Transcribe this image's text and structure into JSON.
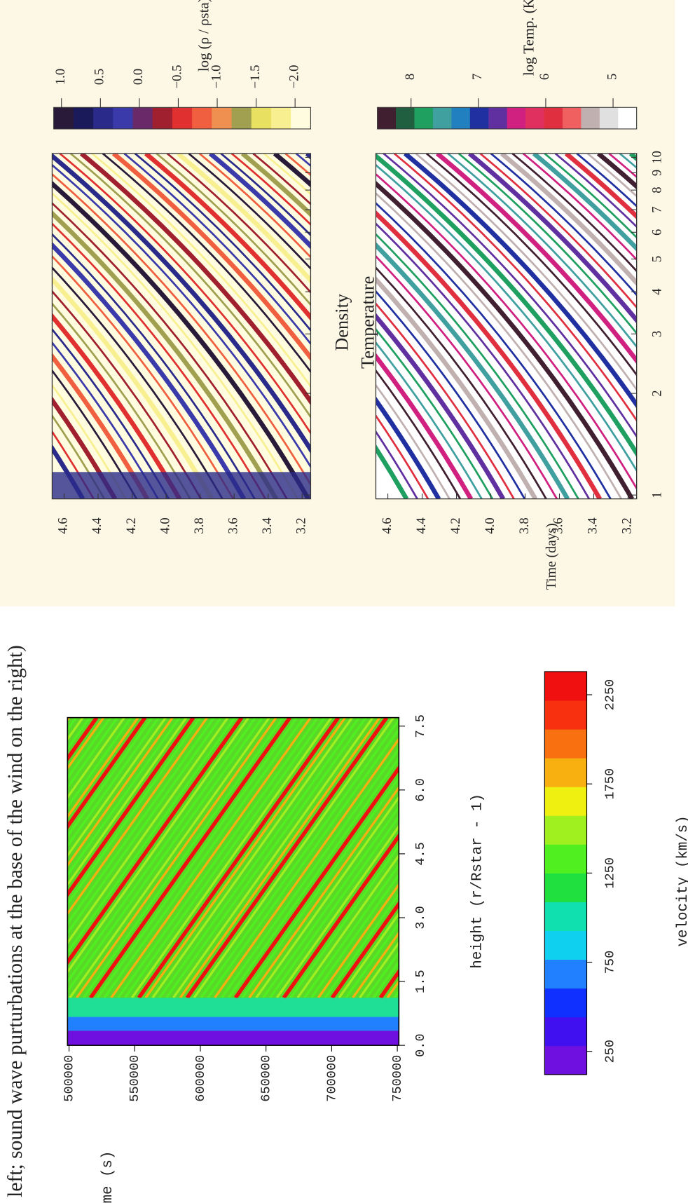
{
  "caption": "left; sound wave purturbations at the base of the wind on the right)",
  "chart_data": [
    {
      "type": "heatmap",
      "xlabel": "height (r/Rstar - 1)",
      "ylabel": "time (s)",
      "xlim": [
        0,
        7.7
      ],
      "xticks": [
        {
          "value": 0,
          "label": "0.0"
        },
        1.5,
        {
          "value": 3,
          "label": "3.0"
        },
        4.5,
        {
          "value": 6,
          "label": "6.0"
        },
        7.5
      ],
      "ylim": [
        500000,
        750000
      ],
      "yticks": [
        500000,
        550000,
        600000,
        650000,
        700000,
        750000
      ],
      "colorbar": {
        "label": "velocity (km/s)",
        "lim": [
          120,
          2380
        ],
        "ticks": [
          250,
          750,
          1250,
          1750,
          2250
        ],
        "colors": [
          "#7010e0",
          "#4010f0",
          "#1030ff",
          "#2080ff",
          "#10d0f0",
          "#10e0b0",
          "#20e040",
          "#50f020",
          "#a0f020",
          "#f0f010",
          "#f8b010",
          "#f87010",
          "#f83010",
          "#f01010"
        ]
      }
    },
    {
      "type": "heatmap",
      "title": "Density",
      "ylim": [
        4.67,
        3.15
      ],
      "yticks": [
        4.6,
        4.4,
        4.2,
        {
          "value": 4,
          "label": "4.0"
        },
        3.8,
        3.6,
        3.4,
        3.2
      ],
      "xlim": [
        1,
        10
      ],
      "xscale": "log",
      "xticks": [
        1,
        2,
        3,
        4,
        5,
        6,
        7,
        8,
        9,
        10
      ],
      "colorbar": {
        "label": "log (ρ / ρsta)",
        "lim": [
          1.1,
          -2.2
        ],
        "ticks": [
          {
            "value": 1,
            "label": "1.0"
          },
          0.5,
          {
            "value": 0,
            "label": "0.0"
          },
          {
            "value": -0.5,
            "label": "−0.5"
          },
          {
            "value": -1,
            "label": "−1.0"
          },
          {
            "value": -1.5,
            "label": "−1.5"
          },
          {
            "value": -2,
            "label": "−2.0"
          }
        ],
        "colors": [
          "#2a1a3a",
          "#1a1a5a",
          "#2a2a8a",
          "#3a3aaa",
          "#6a2a6a",
          "#a02030",
          "#e03030",
          "#f06040",
          "#f09050",
          "#a0a050",
          "#e8e060",
          "#f8f090",
          "#fffce0"
        ]
      }
    },
    {
      "type": "heatmap",
      "title": "Temperature",
      "ylabel": "Time (days)",
      "ylim": [
        4.67,
        3.15
      ],
      "yticks": [
        4.6,
        4.4,
        4.2,
        {
          "value": 4,
          "label": "4.0"
        },
        3.8,
        3.6,
        3.4,
        3.2
      ],
      "xlim": [
        1,
        10
      ],
      "xscale": "log",
      "xticks": [
        1,
        2,
        3,
        4,
        5,
        6,
        7,
        8,
        9,
        10
      ],
      "colorbar": {
        "label": "log Temp. (K)",
        "lim": [
          8.5,
          4.65
        ],
        "ticks": [
          8,
          7,
          6,
          5
        ],
        "colors": [
          "#402030",
          "#206040",
          "#20a060",
          "#40a0a0",
          "#2080c0",
          "#2030a0",
          "#6030a0",
          "#d02080",
          "#e03060",
          "#e03040",
          "#f06060",
          "#c0b0b0",
          "#e0e0e0",
          "#ffffff"
        ]
      }
    }
  ]
}
